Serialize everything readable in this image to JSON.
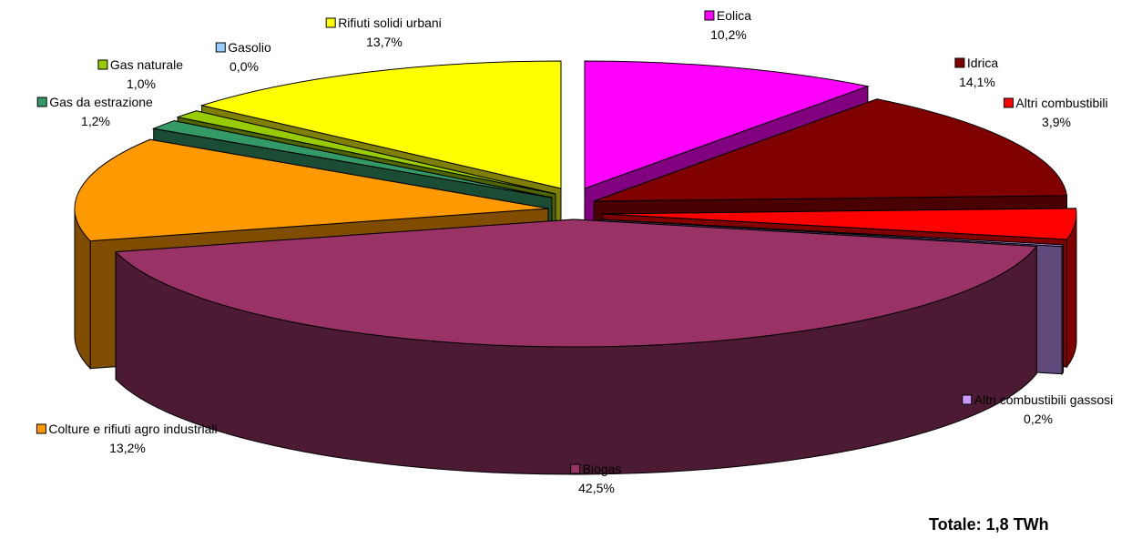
{
  "chart_data": {
    "type": "pie",
    "style": "3d-exploded",
    "total_label": "Totale: 1,8 TWh",
    "slices": [
      {
        "name": "Eolica",
        "value": 10.2,
        "label": "10,2%",
        "color": "#FF00FF",
        "side": "#800080"
      },
      {
        "name": "Idrica",
        "value": 14.1,
        "label": "14,1%",
        "color": "#800000",
        "side": "#4A0000"
      },
      {
        "name": "Altri combustibili",
        "value": 3.9,
        "label": "3,9%",
        "color": "#FF0000",
        "side": "#800000"
      },
      {
        "name": "Altri combustibili gassosi",
        "value": 0.2,
        "label": "0,2%",
        "color": "#CC99FF",
        "side": "#604A7B"
      },
      {
        "name": "Biogas",
        "value": 42.5,
        "label": "42,5%",
        "color": "#993366",
        "side": "#4D1A33"
      },
      {
        "name": "Colture e rifiuti agro industriali",
        "value": 13.2,
        "label": "13,2%",
        "color": "#FF9900",
        "side": "#804C00"
      },
      {
        "name": "Gas da estrazione",
        "value": 1.2,
        "label": "1,2%",
        "color": "#339966",
        "side": "#1A4D33"
      },
      {
        "name": "Gas naturale",
        "value": 1.0,
        "label": "1,0%",
        "color": "#99CC00",
        "side": "#4D6600"
      },
      {
        "name": "Gasolio",
        "value": 0.0,
        "label": "0,0%",
        "color": "#99CCFF",
        "side": "#4D6680"
      },
      {
        "name": "Rifiuti solidi urbani",
        "value": 13.7,
        "label": "13,7%",
        "color": "#FFFF00",
        "side": "#808000"
      }
    ]
  }
}
